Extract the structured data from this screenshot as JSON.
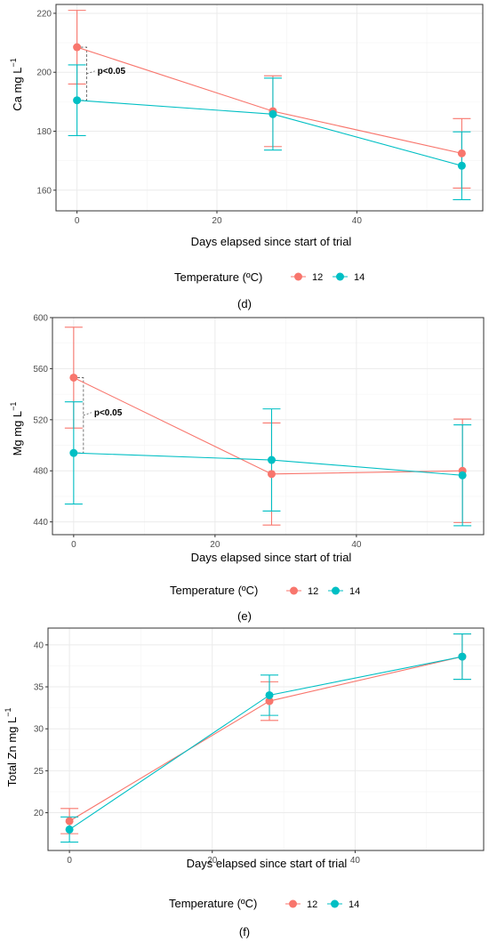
{
  "colors": {
    "series_12": "#F8766D",
    "series_14": "#00BFC4",
    "grid": "#ebebeb",
    "frame": "#333333",
    "bracket": "#555555"
  },
  "chart_data": [
    {
      "type": "line",
      "panel_label": "",
      "xlabel": "Days elapsed since start of trial",
      "ylabel": "Ca mg L",
      "ylabel_sup": "−1",
      "xlim": [
        -3,
        58
      ],
      "ylim": [
        153,
        223
      ],
      "x_ticks": [
        0,
        20,
        40
      ],
      "y_ticks": [
        160,
        180,
        200,
        220
      ],
      "grid": true,
      "legend_title": "Temperature (ºC)",
      "legend_placement": "bottom",
      "annotation": {
        "text": "p<0.05",
        "x": 0,
        "y_top": 208.5,
        "y_bottom": 190.5
      },
      "series": [
        {
          "name": "12",
          "x": [
            0,
            28,
            55
          ],
          "y": [
            208.5,
            186.8,
            172.5
          ],
          "err": [
            12.5,
            12.0,
            11.8
          ]
        },
        {
          "name": "14",
          "x": [
            0,
            28,
            55
          ],
          "y": [
            190.5,
            185.8,
            168.3
          ],
          "err": [
            12.0,
            12.2,
            11.5
          ]
        }
      ]
    },
    {
      "type": "line",
      "panel_label": "(d)",
      "xlabel": "Days elapsed since start of trial",
      "ylabel": "Mg mg L",
      "ylabel_sup": "−1",
      "xlim": [
        -3,
        58
      ],
      "ylim": [
        430,
        600
      ],
      "x_ticks": [
        0,
        20,
        40
      ],
      "y_ticks": [
        440,
        480,
        520,
        560,
        600
      ],
      "grid": true,
      "legend_title": "Temperature (ºC)",
      "legend_placement": "bottom",
      "annotation": {
        "text": "p<0.05",
        "x": 0,
        "y_top": 553,
        "y_bottom": 494
      },
      "series": [
        {
          "name": "12",
          "x": [
            0,
            28,
            55
          ],
          "y": [
            553,
            477.5,
            480
          ],
          "err": [
            39.5,
            40,
            40.5
          ]
        },
        {
          "name": "14",
          "x": [
            0,
            28,
            55
          ],
          "y": [
            494,
            488.5,
            476.5
          ],
          "err": [
            40,
            40,
            39.5
          ]
        }
      ]
    },
    {
      "type": "line",
      "panel_label": "(e)",
      "xlabel": "Days elapsed since start of trial",
      "ylabel": "Total Zn mg L",
      "ylabel_sup": "−1",
      "xlim": [
        -3,
        58
      ],
      "ylim": [
        15.5,
        42
      ],
      "x_ticks": [
        0,
        20,
        40
      ],
      "y_ticks": [
        20,
        25,
        30,
        35,
        40
      ],
      "grid": true,
      "legend_title": "Temperature (ºC)",
      "legend_placement": "bottom",
      "annotation": null,
      "series": [
        {
          "name": "12",
          "x": [
            0,
            28,
            55
          ],
          "y": [
            19.0,
            33.3,
            38.6
          ],
          "err": [
            1.5,
            2.3,
            2.7
          ]
        },
        {
          "name": "14",
          "x": [
            0,
            28,
            55
          ],
          "y": [
            18.0,
            34.0,
            38.6
          ],
          "err": [
            1.5,
            2.4,
            2.7
          ]
        }
      ]
    }
  ],
  "footer_label": "(f)"
}
